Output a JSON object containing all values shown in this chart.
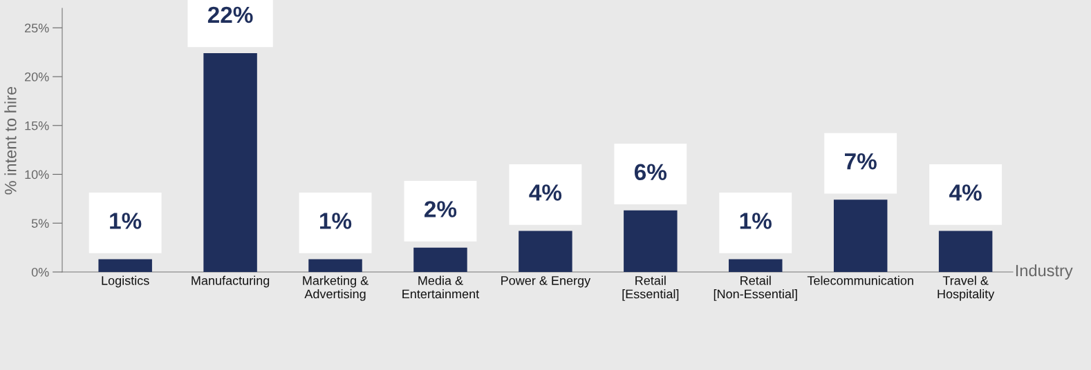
{
  "chart_data": {
    "type": "bar",
    "ylabel": "% intent to hire",
    "xlabel": "Industry",
    "categories": [
      "Logistics",
      "Manufacturing",
      "Marketing &\nAdvertising",
      "Media &\nEntertainment",
      "Power & Energy",
      "Retail\n[Essential]",
      "Retail\n[Non-Essential]",
      "Telecommunication",
      "Travel &\nHospitality"
    ],
    "values": [
      1.3,
      22.4,
      1.3,
      2.5,
      4.2,
      6.3,
      1.3,
      7.4,
      4.2
    ],
    "value_labels": [
      "1%",
      "22%",
      "1%",
      "2%",
      "4%",
      "6%",
      "1%",
      "7%",
      "4%"
    ],
    "color": "#1f2f5c",
    "ylim": [
      0,
      27
    ],
    "yticks": [
      {
        "value": 0,
        "label": "0%"
      },
      {
        "value": 5,
        "label": "5%"
      },
      {
        "value": 10,
        "label": "10%"
      },
      {
        "value": 15,
        "label": "15%"
      },
      {
        "value": 20,
        "label": "20%"
      },
      {
        "value": 25,
        "label": "25%"
      }
    ],
    "grid": false,
    "legend": false
  }
}
